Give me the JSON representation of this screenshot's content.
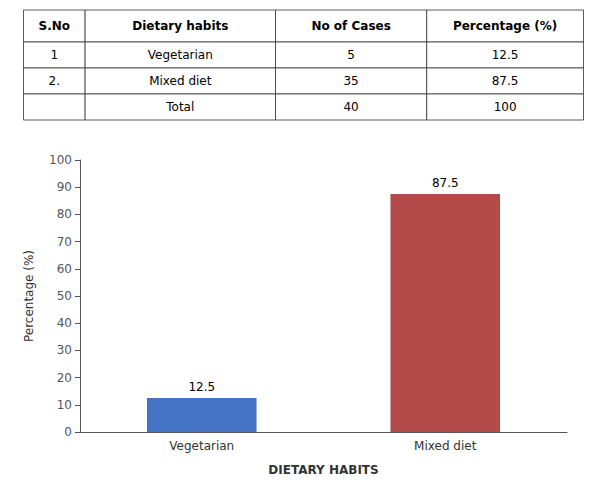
{
  "chart_data": [
    {
      "type": "table",
      "headers": [
        "S.No",
        "Dietary habits",
        "No of Cases",
        "Percentage (%)"
      ],
      "rows": [
        [
          "1",
          "Vegetarian",
          "5",
          "12.5"
        ],
        [
          "2.",
          "Mixed diet",
          "35",
          "87.5"
        ],
        [
          null,
          "Total",
          "40",
          "100"
        ]
      ]
    },
    {
      "type": "bar",
      "categories": [
        "Vegetarian",
        "Mixed diet"
      ],
      "values": [
        12.5,
        87.5
      ],
      "colors": [
        "#4472C4",
        "#B34A4A"
      ],
      "xlabel": "DIETARY HABITS",
      "ylabel": "Percentage (%)",
      "ylim": [
        0,
        100
      ],
      "yticks": [
        0,
        10,
        20,
        30,
        40,
        50,
        60,
        70,
        80,
        90,
        100
      ],
      "data_labels": true,
      "grid": false
    }
  ]
}
